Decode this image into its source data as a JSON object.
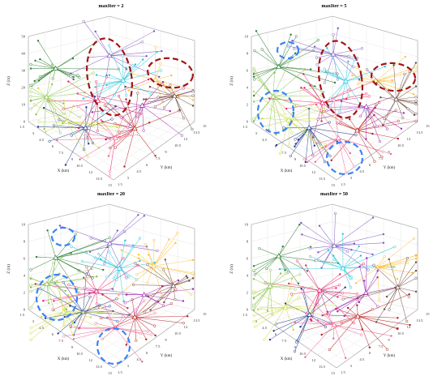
{
  "panels": [
    {
      "title": "maxIter = 2"
    },
    {
      "title": "maxIter = 5"
    },
    {
      "title": "maxIter = 20"
    },
    {
      "title": "maxIter = 50"
    }
  ],
  "axes": {
    "z_label": "Z (m)",
    "x_label": "X (km)",
    "y_label": "Y (km)",
    "x_ticks": [
      "1.5",
      "3",
      "4.5",
      "6",
      "7.5",
      "9",
      "10.5",
      "12",
      "13.5",
      "15"
    ],
    "y_ticks": [
      "1.5",
      "3",
      "4.5",
      "6",
      "7.5",
      "9",
      "10.5",
      "12",
      "13.5",
      "15"
    ],
    "z_ticks_first": [
      "0",
      "10",
      "20",
      "30",
      "40",
      "50"
    ],
    "z_ticks_other": [
      "0",
      "2",
      "4",
      "6",
      "8",
      "10"
    ]
  },
  "colors": {
    "cluster_colors": [
      "#2e7d32",
      "#7e57c2",
      "#e91e63",
      "#26c6da",
      "#fbc02d",
      "#1e3a8a",
      "#b71c1c",
      "#cddc39",
      "#9c27b0",
      "#8bc34a",
      "#f06292",
      "#6d4c41"
    ],
    "dashed_red": "#a31515",
    "dashed_blue": "#3b82f6"
  },
  "annotations": {
    "panel0": [
      "red-ellipse",
      "red-ellipse"
    ],
    "panel1": [
      "red-ellipse",
      "red-ellipse",
      "blue-ellipse",
      "blue-ellipse",
      "blue-ellipse"
    ],
    "panel2": [
      "blue-ellipse",
      "blue-ellipse",
      "blue-ellipse"
    ],
    "panel3": []
  }
}
